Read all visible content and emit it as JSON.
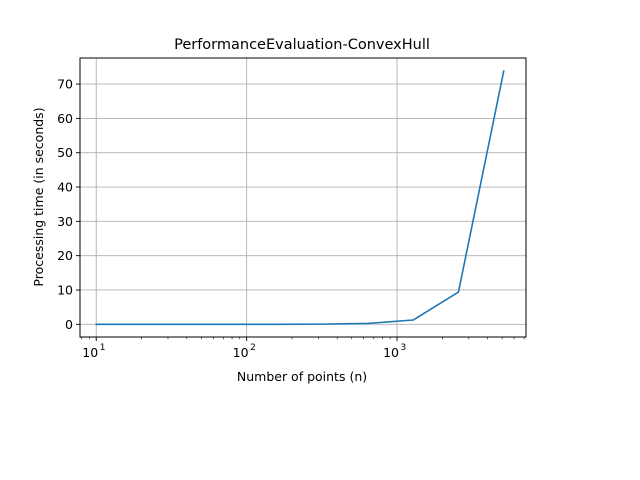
{
  "chart_data": {
    "type": "line",
    "title": "PerformanceEvaluation-ConvexHull",
    "xlabel": "Number of points (n)",
    "ylabel": "Processing time (in seconds)",
    "xscale": "log",
    "xlim": [
      7.8,
      7200
    ],
    "ylim": [
      -3.7,
      77.6
    ],
    "grid": true,
    "x_ticks": [
      {
        "base": "10",
        "exp": "1",
        "value": 10
      },
      {
        "base": "10",
        "exp": "2",
        "value": 100
      },
      {
        "base": "10",
        "exp": "3",
        "value": 1000
      }
    ],
    "y_ticks": [
      0,
      10,
      20,
      30,
      40,
      50,
      60,
      70
    ],
    "series": [
      {
        "color": "#1f77b4",
        "x": [
          10,
          20,
          40,
          80,
          160,
          320,
          640,
          1280,
          2560,
          5120
        ],
        "y": [
          0.0,
          0.0,
          0.0,
          0.0,
          0.01,
          0.05,
          0.25,
          1.25,
          9.4,
          73.8
        ]
      }
    ]
  }
}
